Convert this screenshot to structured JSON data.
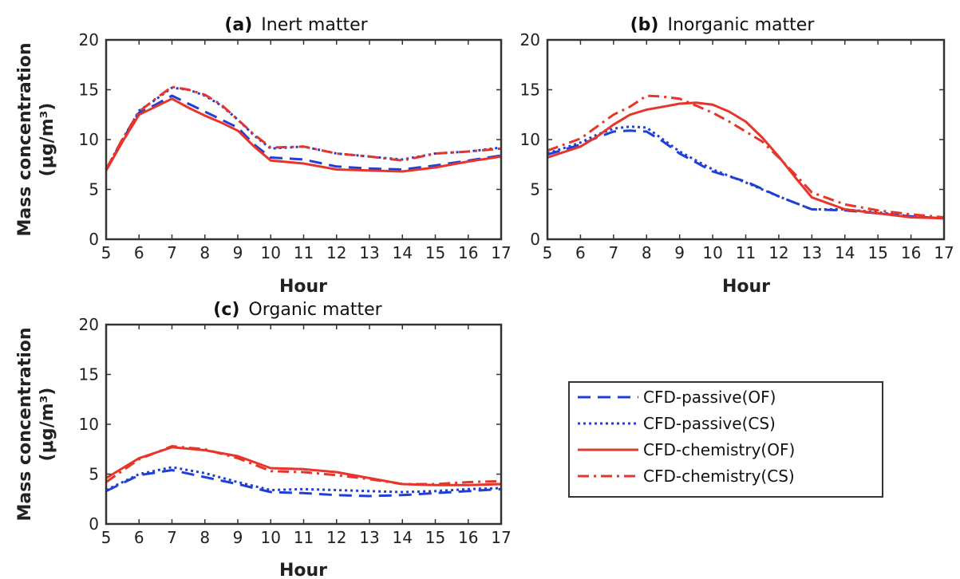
{
  "chart_data": [
    {
      "panel": "a",
      "type": "line",
      "title_letter": "(a)",
      "title": "Inert matter",
      "xlabel": "Hour",
      "ylabel_line1": "Mass concentration",
      "ylabel_line2": "(μg/m³)",
      "xlim": [
        5,
        17
      ],
      "ylim": [
        0,
        20
      ],
      "xticks": [
        5,
        6,
        7,
        8,
        9,
        10,
        11,
        12,
        13,
        14,
        15,
        16,
        17
      ],
      "yticks": [
        0,
        5,
        10,
        15,
        20
      ],
      "grid": false,
      "series": [
        {
          "name": "CFD-passive(OF)",
          "x": [
            5,
            5.5,
            6,
            6.5,
            7,
            7.5,
            8,
            8.5,
            9,
            9.5,
            10,
            11,
            12,
            13,
            14,
            15,
            16,
            17
          ],
          "y": [
            7.0,
            10.0,
            12.7,
            13.5,
            14.4,
            13.6,
            12.8,
            12.0,
            11.2,
            9.5,
            8.2,
            8.0,
            7.3,
            7.1,
            7.0,
            7.4,
            7.9,
            8.4
          ]
        },
        {
          "name": "CFD-passive(CS)",
          "x": [
            5,
            5.5,
            6,
            6.5,
            7,
            7.5,
            8,
            8.5,
            9,
            9.5,
            10,
            11,
            12,
            13,
            14,
            15,
            16,
            17
          ],
          "y": [
            7.0,
            10.0,
            12.9,
            14.0,
            15.2,
            15.0,
            14.4,
            13.4,
            12.0,
            10.4,
            9.1,
            9.3,
            8.6,
            8.3,
            8.0,
            8.6,
            8.8,
            9.2
          ]
        },
        {
          "name": "CFD-chemistry(OF)",
          "x": [
            5,
            5.5,
            6,
            6.5,
            7,
            7.5,
            8,
            8.5,
            9,
            9.5,
            10,
            11,
            12,
            13,
            14,
            15,
            16,
            17
          ],
          "y": [
            6.9,
            9.8,
            12.5,
            13.3,
            14.1,
            13.2,
            12.4,
            11.7,
            10.9,
            9.3,
            7.9,
            7.6,
            7.0,
            6.9,
            6.8,
            7.2,
            7.8,
            8.3
          ]
        },
        {
          "name": "CFD-chemistry(CS)",
          "x": [
            5,
            5.5,
            6,
            6.5,
            7,
            7.5,
            8,
            8.5,
            9,
            9.5,
            10,
            11,
            12,
            13,
            14,
            15,
            16,
            17
          ],
          "y": [
            7.0,
            10.1,
            12.8,
            14.1,
            15.3,
            15.0,
            14.5,
            13.5,
            12.0,
            10.5,
            9.2,
            9.3,
            8.6,
            8.3,
            7.9,
            8.6,
            8.8,
            9.1
          ]
        }
      ]
    },
    {
      "panel": "b",
      "type": "line",
      "title_letter": "(b)",
      "title": "Inorganic matter",
      "xlabel": "Hour",
      "ylabel_line1": "",
      "ylabel_line2": "",
      "xlim": [
        5,
        17
      ],
      "ylim": [
        0,
        20
      ],
      "xticks": [
        5,
        6,
        7,
        8,
        9,
        10,
        11,
        12,
        13,
        14,
        15,
        16,
        17
      ],
      "yticks": [
        0,
        5,
        10,
        15,
        20
      ],
      "grid": false,
      "series": [
        {
          "name": "CFD-passive(OF)",
          "x": [
            5,
            6,
            6.5,
            7,
            7.5,
            8,
            8.5,
            9,
            10,
            11,
            12,
            13,
            14,
            15,
            16,
            17
          ],
          "y": [
            8.5,
            9.5,
            10.2,
            10.8,
            10.9,
            10.8,
            9.8,
            8.6,
            6.8,
            5.8,
            4.3,
            3.0,
            2.9,
            2.6,
            2.3,
            2.1
          ]
        },
        {
          "name": "CFD-passive(CS)",
          "x": [
            5,
            6,
            6.5,
            7,
            7.5,
            8,
            8.5,
            9,
            10,
            11,
            12,
            13,
            14,
            15,
            16,
            17
          ],
          "y": [
            8.6,
            9.7,
            10.5,
            11.1,
            11.3,
            11.2,
            10.0,
            8.8,
            7.0,
            5.7,
            4.3,
            3.0,
            3.0,
            2.7,
            2.3,
            2.1
          ]
        },
        {
          "name": "CFD-chemistry(OF)",
          "x": [
            5,
            6,
            6.5,
            7,
            7.5,
            8,
            8.5,
            9,
            9.5,
            10,
            10.5,
            11,
            11.5,
            12,
            12.5,
            13,
            14,
            15,
            16,
            17
          ],
          "y": [
            8.2,
            9.3,
            10.3,
            11.5,
            12.5,
            13.0,
            13.3,
            13.6,
            13.7,
            13.5,
            12.8,
            11.8,
            10.2,
            8.3,
            6.2,
            4.2,
            3.0,
            2.6,
            2.2,
            2.1
          ]
        },
        {
          "name": "CFD-chemistry(CS)",
          "x": [
            5,
            6,
            6.5,
            7,
            7.5,
            8,
            8.5,
            9,
            9.5,
            10,
            10.5,
            11,
            11.5,
            12,
            12.5,
            13,
            14,
            15,
            16,
            17
          ],
          "y": [
            8.9,
            10.1,
            11.3,
            12.5,
            13.3,
            14.4,
            14.3,
            14.1,
            13.4,
            12.7,
            11.8,
            10.8,
            9.8,
            8.2,
            6.5,
            4.7,
            3.5,
            2.9,
            2.5,
            2.2
          ]
        }
      ]
    },
    {
      "panel": "c",
      "type": "line",
      "title_letter": "(c)",
      "title": "Organic matter",
      "xlabel": "Hour",
      "ylabel_line1": "Mass concentration",
      "ylabel_line2": "(μg/m³)",
      "xlim": [
        5,
        17
      ],
      "ylim": [
        0,
        20
      ],
      "xticks": [
        5,
        6,
        7,
        8,
        9,
        10,
        11,
        12,
        13,
        14,
        15,
        16,
        17
      ],
      "yticks": [
        0,
        5,
        10,
        15,
        20
      ],
      "grid": false,
      "series": [
        {
          "name": "CFD-passive(OF)",
          "x": [
            5,
            6,
            7,
            8,
            9,
            10,
            11,
            12,
            13,
            14,
            15,
            16,
            17
          ],
          "y": [
            3.3,
            4.9,
            5.4,
            4.7,
            4.0,
            3.2,
            3.1,
            2.9,
            2.8,
            2.9,
            3.1,
            3.3,
            3.5
          ]
        },
        {
          "name": "CFD-passive(CS)",
          "x": [
            5,
            6,
            7,
            8,
            9,
            10,
            11,
            12,
            13,
            14,
            15,
            16,
            17
          ],
          "y": [
            3.4,
            5.0,
            5.7,
            5.1,
            4.2,
            3.4,
            3.5,
            3.4,
            3.3,
            3.2,
            3.3,
            3.5,
            3.6
          ]
        },
        {
          "name": "CFD-chemistry(OF)",
          "x": [
            5,
            6,
            7,
            8,
            9,
            10,
            11,
            12,
            13,
            14,
            15,
            16,
            17
          ],
          "y": [
            4.6,
            6.6,
            7.7,
            7.4,
            6.8,
            5.6,
            5.5,
            5.2,
            4.6,
            4.0,
            3.9,
            3.9,
            4.0
          ]
        },
        {
          "name": "CFD-chemistry(CS)",
          "x": [
            5,
            6,
            7,
            8,
            9,
            10,
            11,
            12,
            13,
            14,
            15,
            16,
            17
          ],
          "y": [
            4.2,
            6.5,
            7.8,
            7.5,
            6.6,
            5.3,
            5.2,
            4.9,
            4.5,
            4.0,
            4.0,
            4.2,
            4.3
          ]
        }
      ]
    }
  ],
  "legend": {
    "placement": "right of panel (c)",
    "entries": [
      {
        "label": "CFD-passive(OF)",
        "color": "#1f3fd8",
        "style": "dashed"
      },
      {
        "label": "CFD-passive(CS)",
        "color": "#1f3fd8",
        "style": "dotted"
      },
      {
        "label": "CFD-chemistry(OF)",
        "color": "#e8352b",
        "style": "solid"
      },
      {
        "label": "CFD-chemistry(CS)",
        "color": "#e8352b",
        "style": "dashdot"
      }
    ]
  },
  "colors": {
    "passive": "#1f3fd8",
    "chemistry": "#e8352b",
    "axis": "#333333"
  }
}
